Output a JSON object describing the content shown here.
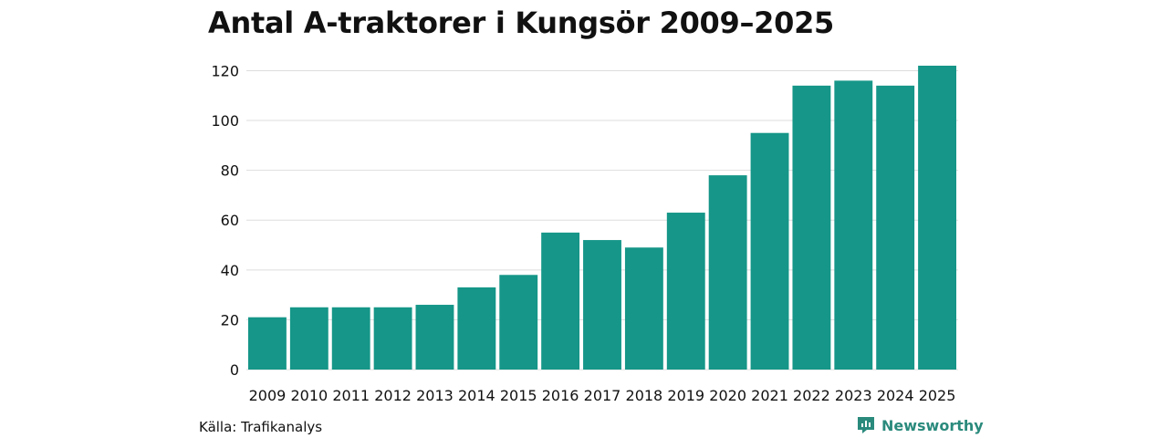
{
  "title": "Antal A-traktorer i Kungsör 2009–2025",
  "source": "Källa: Trafikanalys",
  "brand": {
    "name": "Newsworthy",
    "icon": "newsworthy-logo-icon"
  },
  "colors": {
    "bar": "#159688",
    "grid": "#dddddd",
    "text": "#111111",
    "brand": "#2a8a7c"
  },
  "chart_data": {
    "type": "bar",
    "title": "Antal A-traktorer i Kungsör 2009–2025",
    "xlabel": "",
    "ylabel": "",
    "ylim": [
      0,
      120
    ],
    "yticks": [
      0,
      20,
      40,
      60,
      80,
      100,
      120
    ],
    "grid": true,
    "categories": [
      "2009",
      "2010",
      "2011",
      "2012",
      "2013",
      "2014",
      "2015",
      "2016",
      "2017",
      "2018",
      "2019",
      "2020",
      "2021",
      "2022",
      "2023",
      "2024",
      "2025"
    ],
    "values": [
      21,
      25,
      25,
      25,
      26,
      33,
      38,
      55,
      52,
      49,
      63,
      78,
      95,
      114,
      116,
      114,
      122
    ]
  }
}
